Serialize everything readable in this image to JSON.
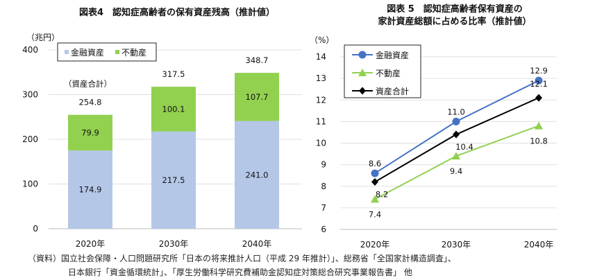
{
  "chart_data": [
    {
      "type": "bar",
      "stacked": true,
      "title": "図表4　認知症高齢者の保有資産残高（推計値）",
      "ylabel": "（兆円）",
      "categories": [
        "2020年",
        "2030年",
        "2040年"
      ],
      "series": [
        {
          "name": "金融資産",
          "values": [
            174.9,
            217.5,
            241.0
          ],
          "labels": [
            "174.9",
            "217.5",
            "241.0"
          ],
          "color": "#b4c7e7"
        },
        {
          "name": "不動産",
          "values": [
            79.9,
            100.1,
            107.7
          ],
          "labels": [
            "79.9",
            "100.1",
            "107.7"
          ],
          "color": "#92d050"
        }
      ],
      "totals": [
        "254.8",
        "317.5",
        "348.7"
      ],
      "totals_label": "（資産合計）",
      "ylim": [
        0,
        400
      ],
      "yticks": [
        "0",
        "100",
        "200",
        "300",
        "400"
      ],
      "grid": true,
      "legend": "top-left"
    },
    {
      "type": "line",
      "title": [
        "図表 5　認知症高齢者保有資産の",
        "家計資産総額に占める比率（推計値）"
      ],
      "ylabel": "（%）",
      "categories": [
        "2020年",
        "2030年",
        "2040年"
      ],
      "series": [
        {
          "name": "金融資産",
          "values": [
            8.6,
            11.0,
            12.9
          ],
          "labels": [
            "8.6",
            "11.0",
            "12.9"
          ],
          "color": "#4472c4",
          "marker": "circle"
        },
        {
          "name": "不動産",
          "values": [
            7.4,
            9.4,
            10.8
          ],
          "labels": [
            "7.4",
            "9.4",
            "10.8"
          ],
          "color": "#92d050",
          "marker": "triangle"
        },
        {
          "name": "資産合計",
          "values": [
            8.2,
            10.4,
            12.1
          ],
          "labels": [
            "8.2",
            "10.4",
            "12.1"
          ],
          "color": "#000000",
          "marker": "diamond"
        }
      ],
      "ylim": [
        6,
        14
      ],
      "yticks": [
        "6",
        "7",
        "8",
        "9",
        "10",
        "11",
        "12",
        "13",
        "14"
      ],
      "grid": true,
      "legend": "top-left"
    }
  ],
  "source": [
    "（資料）国立社会保障・人口問題研究所「日本の将来推計人口（平成 29 年推計）」、総務省「全国家計構造調査」、",
    "日本銀行「資金循環統計」、「厚生労働科学研究費補助金認知症対策総合研究事業報告書」 他"
  ]
}
